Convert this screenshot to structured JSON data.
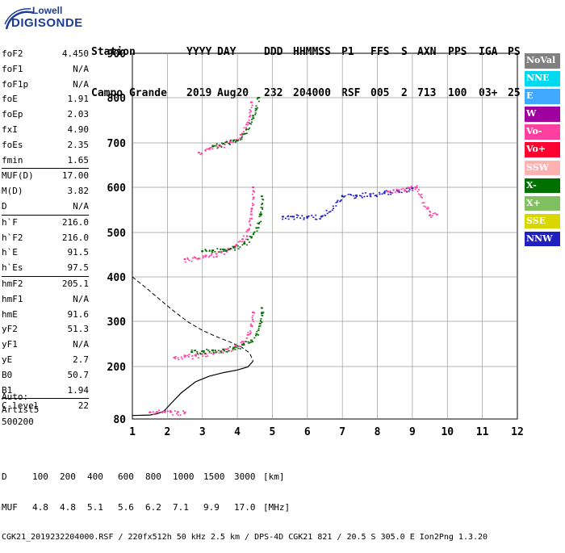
{
  "logo": {
    "line1": "Lowell",
    "line2": "DIGISONDE"
  },
  "header": {
    "labels": [
      "Station",
      "YYYY",
      "DAY",
      "DDD",
      "HHMMSS",
      "P1",
      "FFS",
      "S",
      "AXN",
      "PPS",
      "IGA",
      "PS"
    ],
    "values": [
      "Campo Grande",
      "2019",
      "Aug20",
      "232",
      "204000",
      "RSF",
      "005",
      "2",
      "713",
      "100",
      "03+",
      "25"
    ]
  },
  "params": {
    "group1": [
      {
        "name": "foF2",
        "value": "4.450"
      },
      {
        "name": "foF1",
        "value": "N/A"
      },
      {
        "name": "foF1p",
        "value": "N/A"
      },
      {
        "name": "foE",
        "value": "1.91"
      },
      {
        "name": "foEp",
        "value": "2.03"
      },
      {
        "name": "fxI",
        "value": "4.90"
      },
      {
        "name": "foEs",
        "value": "2.35"
      },
      {
        "name": "fmin",
        "value": "1.65"
      }
    ],
    "group2": [
      {
        "name": "MUF(D)",
        "value": "17.00"
      },
      {
        "name": "M(D)",
        "value": "3.82"
      },
      {
        "name": "D",
        "value": "N/A"
      }
    ],
    "group3": [
      {
        "name": "h`F",
        "value": "216.0"
      },
      {
        "name": "h`F2",
        "value": "216.0"
      },
      {
        "name": "h`E",
        "value": "91.5"
      },
      {
        "name": "h`Es",
        "value": "97.5"
      }
    ],
    "group4": [
      {
        "name": "hmF2",
        "value": "205.1"
      },
      {
        "name": "hmF1",
        "value": "N/A"
      },
      {
        "name": "hmE",
        "value": "91.6"
      },
      {
        "name": "yF2",
        "value": "51.3"
      },
      {
        "name": "yF1",
        "value": "N/A"
      },
      {
        "name": "yE",
        "value": "2.7"
      },
      {
        "name": "B0",
        "value": "50.7"
      },
      {
        "name": "B1",
        "value": "1.94"
      }
    ],
    "group5": [
      {
        "name": "C-level",
        "value": "22"
      }
    ]
  },
  "auto": {
    "line1": "Auto:",
    "line2": "Artist5",
    "line3": "500200"
  },
  "legend": [
    {
      "label": "NoVal",
      "color": "#808080"
    },
    {
      "label": "NNE",
      "color": "#00d8f0"
    },
    {
      "label": "E",
      "color": "#40a8ff"
    },
    {
      "label": "W",
      "color": "#a000a0"
    },
    {
      "label": "Vo-",
      "color": "#ff40a0"
    },
    {
      "label": "Vo+",
      "color": "#ff0030"
    },
    {
      "label": "SSW",
      "color": "#ffb0b0"
    },
    {
      "label": "X-",
      "color": "#007000"
    },
    {
      "label": "X+",
      "color": "#80c060"
    },
    {
      "label": "SSE",
      "color": "#d8d800"
    },
    {
      "label": "NNW",
      "color": "#2020c0"
    }
  ],
  "chart_data": {
    "type": "scatter",
    "xlabel": "",
    "ylabel": "",
    "xlim": [
      1,
      12
    ],
    "ylim": [
      80,
      900
    ],
    "x_ticks": [
      "1",
      "2",
      "3",
      "4",
      "5",
      "6",
      "7",
      "8",
      "9",
      "10",
      "11",
      "12"
    ],
    "y_ticks": [
      "80",
      "200",
      "300",
      "400",
      "500",
      "600",
      "700",
      "800",
      "900"
    ],
    "y_tick_values": [
      80,
      200,
      300,
      400,
      500,
      600,
      700,
      800,
      900
    ],
    "grid": true,
    "traces": [
      {
        "name": "O-trace F2 1st hop",
        "color": "#ff40a0",
        "x": [
          2.2,
          2.5,
          2.8,
          3.1,
          3.4,
          3.7,
          3.95,
          4.15,
          4.3,
          4.4,
          4.45
        ],
        "y": [
          220,
          222,
          225,
          228,
          232,
          238,
          245,
          255,
          270,
          290,
          320
        ]
      },
      {
        "name": "X-trace F2 1st hop",
        "color": "#007000",
        "x": [
          2.7,
          3.0,
          3.3,
          3.6,
          3.9,
          4.15,
          4.4,
          4.55,
          4.65,
          4.7
        ],
        "y": [
          232,
          234,
          236,
          238,
          242,
          248,
          258,
          272,
          295,
          330
        ]
      },
      {
        "name": "O-trace F2 2nd hop",
        "color": "#ff40a0",
        "x": [
          2.5,
          2.8,
          3.1,
          3.4,
          3.7,
          3.95,
          4.15,
          4.3,
          4.4,
          4.45
        ],
        "y": [
          440,
          443,
          448,
          452,
          460,
          470,
          485,
          505,
          540,
          600
        ]
      },
      {
        "name": "X-trace F2 2nd hop",
        "color": "#007000",
        "x": [
          3.0,
          3.3,
          3.6,
          3.9,
          4.2,
          4.4,
          4.55,
          4.65,
          4.7
        ],
        "y": [
          458,
          460,
          462,
          466,
          475,
          490,
          510,
          540,
          580
        ]
      },
      {
        "name": "O-trace F2 3rd hop",
        "color": "#ff40a0",
        "x": [
          2.9,
          3.2,
          3.5,
          3.8,
          4.1,
          4.3,
          4.4
        ],
        "y": [
          678,
          686,
          694,
          702,
          718,
          745,
          790
        ]
      },
      {
        "name": "X-trace F2 3rd hop",
        "color": "#007000",
        "x": [
          3.3,
          3.6,
          3.9,
          4.2,
          4.45,
          4.6
        ],
        "y": [
          692,
          698,
          706,
          720,
          760,
          800
        ]
      },
      {
        "name": "Es trace",
        "color": "#ff40a0",
        "x": [
          1.5,
          1.7,
          1.9,
          2.1,
          2.3,
          2.5
        ],
        "y": [
          95,
          96,
          97,
          96,
          96,
          95
        ]
      },
      {
        "name": "NNW echoes",
        "color": "#2020c0",
        "x": [
          5.3,
          5.6,
          6.0,
          6.4,
          7.0,
          7.4,
          7.8,
          8.2,
          8.6,
          9.0
        ],
        "y": [
          535,
          535,
          535,
          535,
          580,
          582,
          585,
          588,
          592,
          598
        ]
      },
      {
        "name": "Vo- oblique",
        "color": "#ff40a0",
        "x": [
          8.3,
          8.6,
          8.9,
          9.1,
          9.5,
          9.7
        ],
        "y": [
          590,
          594,
          598,
          600,
          538,
          540
        ]
      }
    ],
    "profile": {
      "solid": {
        "x": [
          1.0,
          1.5,
          1.7,
          1.9,
          2.1,
          2.4,
          2.8,
          3.2,
          3.6,
          4.0,
          4.3,
          4.45
        ],
        "y": [
          88,
          89,
          92,
          98,
          115,
          140,
          165,
          178,
          186,
          192,
          199,
          212
        ]
      },
      "dashed": {
        "x": [
          1.0,
          1.4,
          1.8,
          2.2,
          2.6,
          3.0,
          3.4,
          3.8,
          4.1,
          4.35,
          4.45
        ],
        "y": [
          400,
          375,
          348,
          322,
          298,
          280,
          266,
          254,
          244,
          230,
          212
        ]
      }
    }
  },
  "footer": {
    "row1_label": "D",
    "row1_values": [
      "100",
      "200",
      "400",
      "600",
      "800",
      "1000",
      "1500",
      "3000",
      "[km]"
    ],
    "row2_label": "MUF",
    "row2_values": [
      "4.8",
      "4.8",
      "5.1",
      "5.6",
      "6.2",
      "7.1",
      "9.9",
      "17.0",
      "[MHz]"
    ],
    "row3": "CGK21_2019232204000.RSF / 220fx512h 50 kHz 2.5 km / DPS-4D CGK21 821 / 20.5 S 305.0 E Ion2Png 1.3.20"
  }
}
